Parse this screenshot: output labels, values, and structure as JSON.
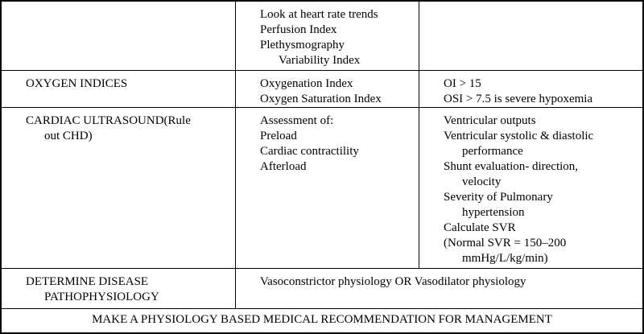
{
  "table": {
    "rows": [
      {
        "cells": [
          {
            "lines": []
          },
          {
            "lines": [
              {
                "text": "Look at heart rate trends"
              },
              {
                "text": "Perfusion Index"
              },
              {
                "text": "Plethysmography"
              },
              {
                "text": "Variability Index",
                "indent": 1
              }
            ]
          },
          {
            "lines": []
          }
        ]
      },
      {
        "cells": [
          {
            "lines": [
              {
                "text": "OXYGEN INDICES"
              }
            ]
          },
          {
            "lines": [
              {
                "text": "Oxygenation Index"
              },
              {
                "text": "Oxygen Saturation Index"
              }
            ]
          },
          {
            "lines": [
              {
                "text": "OI > 15"
              },
              {
                "text": "OSI > 7.5 is severe hypoxemia"
              }
            ]
          }
        ]
      },
      {
        "cells": [
          {
            "lines": [
              {
                "text": "CARDIAC ULTRASOUND(Rule"
              },
              {
                "text": "out CHD)",
                "indent": 1
              }
            ]
          },
          {
            "lines": [
              {
                "text": "Assessment of:"
              },
              {
                "text": "Preload"
              },
              {
                "text": "Cardiac contractility"
              },
              {
                "text": "Afterload"
              }
            ]
          },
          {
            "lines": [
              {
                "text": "Ventricular outputs"
              },
              {
                "text": "Ventricular systolic & diastolic"
              },
              {
                "text": "performance",
                "indent": 1
              },
              {
                "text": "Shunt evaluation- direction,"
              },
              {
                "text": "velocity",
                "indent": 1
              },
              {
                "text": "Severity of Pulmonary"
              },
              {
                "text": "hypertension",
                "indent": 1
              },
              {
                "text": "Calculate SVR"
              },
              {
                "text": "(Normal SVR = 150–200"
              },
              {
                "text": "mmHg/L/kg/min)",
                "indent": 1
              }
            ]
          }
        ]
      },
      {
        "cells": [
          {
            "lines": [
              {
                "text": "DETERMINE DISEASE"
              },
              {
                "text": "PATHOPHYSIOLOGY",
                "indent": 1
              }
            ]
          },
          {
            "lines": [
              {
                "text": "Vasoconstrictor physiology OR Vasodilator physiology"
              }
            ]
          }
        ]
      },
      {
        "cells": [
          {
            "lines": [
              {
                "text": "MAKE A PHYSIOLOGY BASED MEDICAL RECOMMENDATION FOR MANAGEMENT"
              }
            ]
          }
        ]
      }
    ]
  }
}
